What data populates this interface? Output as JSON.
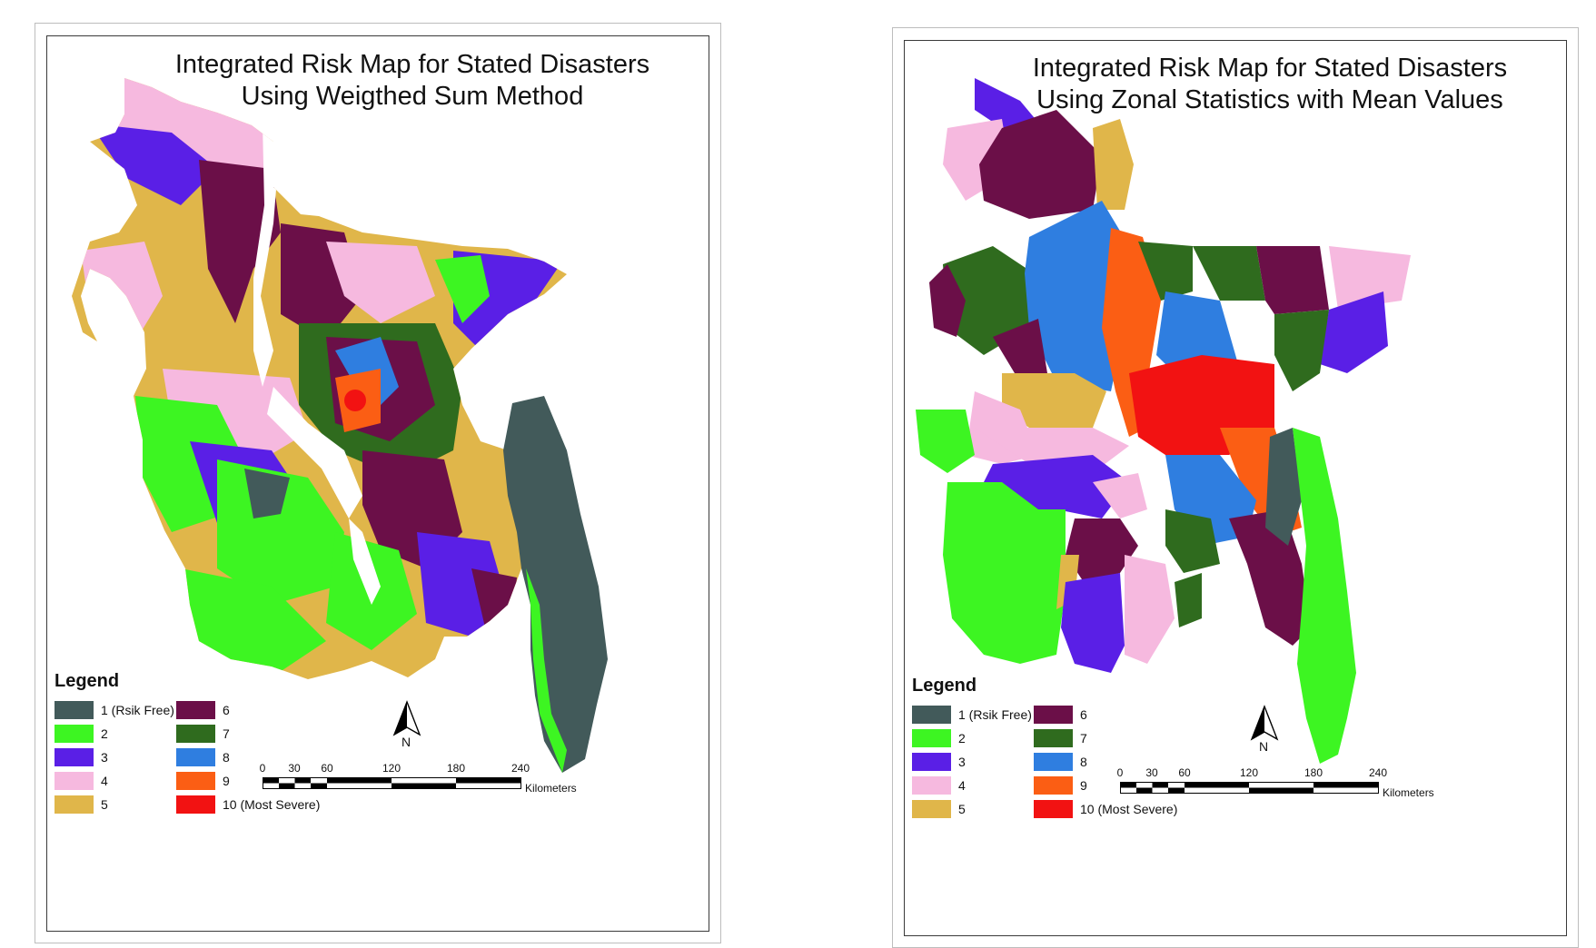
{
  "panels": [
    {
      "title_line1": "Integrated Risk Map for Stated Disasters",
      "title_line2": "Using Weigthed Sum Method"
    },
    {
      "title_line1": "Integrated Risk Map for Stated Disasters",
      "title_line2": "Using Zonal Statistics with Mean Values"
    }
  ],
  "legend": {
    "title": "Legend",
    "items": [
      {
        "label": "1 (Rsik Free)",
        "color": "#425a5a"
      },
      {
        "label": "2",
        "color": "#3df522"
      },
      {
        "label": "3",
        "color": "#5a1fe6"
      },
      {
        "label": "4",
        "color": "#f6b9df"
      },
      {
        "label": "5",
        "color": "#e0b64a"
      },
      {
        "label": "6",
        "color": "#6b0f48"
      },
      {
        "label": "7",
        "color": "#2f6b1e"
      },
      {
        "label": "8",
        "color": "#2f7ee0"
      },
      {
        "label": "9",
        "color": "#fb5e14"
      },
      {
        "label": "10 (Most Severe)",
        "color": "#f21212"
      }
    ]
  },
  "scale_bar": {
    "ticks": [
      "0",
      "30",
      "60",
      "120",
      "180",
      "240"
    ],
    "unit": "Kilometers"
  },
  "north_arrow": {
    "label": "N"
  }
}
